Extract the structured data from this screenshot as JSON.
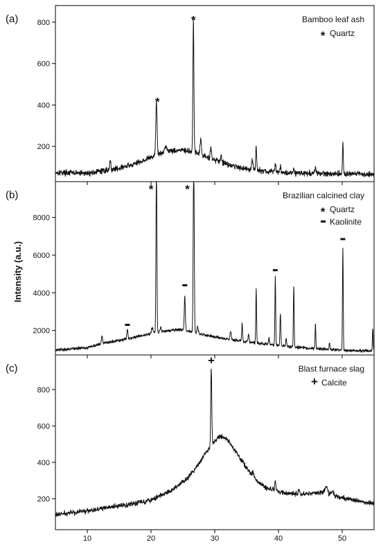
{
  "figure": {
    "ylabel": "Intensity (a.u.)",
    "xlim": [
      5,
      55
    ],
    "xticks": [
      10,
      20,
      30,
      40,
      50
    ],
    "marker_symbols": {
      "quartz": "*",
      "kaolinite": "-",
      "calcite": "+"
    }
  },
  "chart_data": [
    {
      "type": "line",
      "panel": "(a)",
      "legend_title": "Bamboo leaf ash",
      "legend_items": [
        {
          "symbol": "*",
          "label": "Quartz"
        }
      ],
      "xlim": [
        5,
        55
      ],
      "ylim": [
        30,
        880
      ],
      "yticks": [
        200,
        400,
        600,
        800
      ],
      "baseline": [
        [
          5,
          75
        ],
        [
          10,
          70
        ],
        [
          13,
          85
        ],
        [
          15,
          95
        ],
        [
          17,
          110
        ],
        [
          19,
          135
        ],
        [
          21,
          160
        ],
        [
          23,
          180
        ],
        [
          25,
          182
        ],
        [
          27,
          168
        ],
        [
          29,
          145
        ],
        [
          31,
          125
        ],
        [
          33,
          105
        ],
        [
          35,
          92
        ],
        [
          38,
          80
        ],
        [
          42,
          72
        ],
        [
          46,
          70
        ],
        [
          50,
          68
        ],
        [
          55,
          65
        ]
      ],
      "peaks": [
        [
          13.6,
          45,
          0.08
        ],
        [
          20.85,
          260,
          0.1
        ],
        [
          22.3,
          35,
          0.15
        ],
        [
          26.65,
          640,
          0.08
        ],
        [
          27.8,
          80,
          0.1
        ],
        [
          29.4,
          60,
          0.1
        ],
        [
          31.0,
          30,
          0.1
        ],
        [
          35.9,
          50,
          0.1
        ],
        [
          36.5,
          120,
          0.07
        ],
        [
          39.5,
          40,
          0.08
        ],
        [
          40.3,
          25,
          0.08
        ],
        [
          42.4,
          25,
          0.08
        ],
        [
          45.8,
          25,
          0.08
        ],
        [
          50.1,
          145,
          0.07
        ]
      ],
      "noise": 14,
      "markers": [
        {
          "x": 21.0,
          "y": 420,
          "symbol": "*"
        },
        {
          "x": 26.65,
          "y": 815,
          "symbol": "*"
        }
      ],
      "series": [
        {
          "values_note": ""
        }
      ]
    },
    {
      "type": "line",
      "panel": "(b)",
      "legend_title": "Brazilian calcined clay",
      "legend_items": [
        {
          "symbol": "*",
          "label": "Quartz"
        },
        {
          "symbol": "-",
          "label": "Kaolinite"
        }
      ],
      "xlim": [
        5,
        55
      ],
      "ylim": [
        700,
        9900
      ],
      "yticks": [
        2000,
        4000,
        6000,
        8000
      ],
      "baseline": [
        [
          5,
          950
        ],
        [
          10,
          1100
        ],
        [
          13,
          1350
        ],
        [
          16,
          1550
        ],
        [
          19,
          1750
        ],
        [
          21,
          1900
        ],
        [
          23,
          2000
        ],
        [
          25,
          2050
        ],
        [
          27,
          1850
        ],
        [
          30,
          1650
        ],
        [
          33,
          1500
        ],
        [
          36,
          1350
        ],
        [
          40,
          1200
        ],
        [
          45,
          1050
        ],
        [
          50,
          950
        ],
        [
          55,
          900
        ]
      ],
      "peaks": [
        [
          12.3,
          400,
          0.1
        ],
        [
          16.3,
          500,
          0.08
        ],
        [
          20.2,
          300,
          0.15
        ],
        [
          20.85,
          9200,
          0.07
        ],
        [
          21.5,
          250,
          0.1
        ],
        [
          25.3,
          1800,
          0.08
        ],
        [
          26.7,
          9500,
          0.08
        ],
        [
          27.3,
          400,
          0.1
        ],
        [
          32.5,
          400,
          0.1
        ],
        [
          34.3,
          900,
          0.07
        ],
        [
          35.3,
          400,
          0.08
        ],
        [
          36.5,
          2900,
          0.06
        ],
        [
          38.5,
          350,
          0.08
        ],
        [
          39.5,
          3700,
          0.06
        ],
        [
          40.3,
          1700,
          0.07
        ],
        [
          41.2,
          400,
          0.08
        ],
        [
          42.4,
          3300,
          0.06
        ],
        [
          45.8,
          1300,
          0.06
        ],
        [
          48.0,
          300,
          0.08
        ],
        [
          50.1,
          5500,
          0.06
        ],
        [
          54.8,
          1200,
          0.06
        ]
      ],
      "noise": 80,
      "markers": [
        {
          "x": 16.3,
          "y": 2300,
          "symbol": "-"
        },
        {
          "x": 20.0,
          "y": 9550,
          "symbol": "*"
        },
        {
          "x": 25.3,
          "y": 4400,
          "symbol": "-"
        },
        {
          "x": 25.7,
          "y": 9550,
          "symbol": "*"
        },
        {
          "x": 39.5,
          "y": 5200,
          "symbol": "-"
        },
        {
          "x": 50.1,
          "y": 6850,
          "symbol": "-"
        }
      ],
      "series": [
        {
          "values_note": ""
        }
      ]
    },
    {
      "type": "line",
      "panel": "(c)",
      "legend_title": "Blast furnace slag",
      "legend_items": [
        {
          "symbol": "+",
          "label": "Calcite"
        }
      ],
      "xlim": [
        5,
        55
      ],
      "ylim": [
        30,
        990
      ],
      "yticks": [
        200,
        400,
        600,
        800
      ],
      "baseline": [
        [
          5,
          112
        ],
        [
          8,
          125
        ],
        [
          12,
          145
        ],
        [
          16,
          165
        ],
        [
          20,
          195
        ],
        [
          23,
          240
        ],
        [
          26,
          320
        ],
        [
          28,
          420
        ],
        [
          30,
          520
        ],
        [
          31,
          545
        ],
        [
          32,
          525
        ],
        [
          34,
          420
        ],
        [
          36,
          320
        ],
        [
          38,
          260
        ],
        [
          41,
          230
        ],
        [
          44,
          225
        ],
        [
          47,
          235
        ],
        [
          50,
          205
        ],
        [
          53,
          185
        ],
        [
          55,
          175
        ]
      ],
      "peaks": [
        [
          29.45,
          430,
          0.08
        ],
        [
          36.0,
          30,
          0.1
        ],
        [
          39.5,
          45,
          0.1
        ],
        [
          43.2,
          25,
          0.1
        ],
        [
          47.5,
          35,
          0.2
        ],
        [
          48.5,
          25,
          0.15
        ]
      ],
      "noise": 14,
      "markers": [
        {
          "x": 29.45,
          "y": 965,
          "symbol": "+"
        }
      ],
      "series": [
        {
          "values_note": ""
        }
      ]
    }
  ]
}
